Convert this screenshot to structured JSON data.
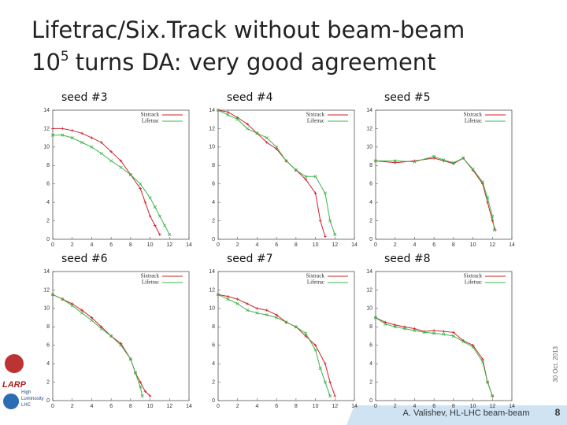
{
  "title": {
    "line1": "Lifetrac/Six.Track without beam-beam",
    "line2_base": "10",
    "line2_sup": "5",
    "line2_rest": "turns DA: very good agreement"
  },
  "footer": {
    "author": "A. Valishev, HL-LHC beam-beam",
    "page": "8",
    "date": "30 Oct. 2013"
  },
  "logos": {
    "larp": "LARP",
    "hl1": "High",
    "hl2": "Luminosity",
    "hl3": "LHC"
  },
  "chart_data": [
    {
      "type": "line",
      "title": "seed #3",
      "xlim": [
        0,
        14
      ],
      "ylim": [
        0,
        14
      ],
      "xticks": [
        0,
        2,
        4,
        6,
        8,
        10,
        12,
        14
      ],
      "yticks": [
        0,
        2,
        4,
        6,
        8,
        10,
        12,
        14
      ],
      "series": [
        {
          "name": "Sixtrack",
          "color": "#d0202a",
          "x": [
            0,
            1,
            2,
            3,
            4,
            5,
            6,
            7,
            8,
            9,
            9.5,
            10,
            10.5,
            11
          ],
          "values": [
            12,
            12,
            11.8,
            11.5,
            11,
            10.5,
            9.5,
            8.5,
            7,
            5.5,
            4,
            2.5,
            1.5,
            0.5
          ]
        },
        {
          "name": "Lifetrac",
          "color": "#3cb44b",
          "x": [
            0,
            1,
            2,
            3,
            4,
            5,
            6,
            7,
            8,
            9,
            10,
            10.5,
            11,
            11.5,
            12
          ],
          "values": [
            11.3,
            11.3,
            11,
            10.5,
            10,
            9.3,
            8.5,
            7.8,
            7,
            6,
            4.5,
            3.5,
            2.5,
            1.5,
            0.5
          ]
        }
      ]
    },
    {
      "type": "line",
      "title": "seed #4",
      "xlim": [
        0,
        14
      ],
      "ylim": [
        0,
        14
      ],
      "xticks": [
        0,
        2,
        4,
        6,
        8,
        10,
        12,
        14
      ],
      "yticks": [
        0,
        2,
        4,
        6,
        8,
        10,
        12,
        14
      ],
      "series": [
        {
          "name": "Sixtrack",
          "color": "#d0202a",
          "x": [
            0,
            1,
            2,
            3,
            4,
            5,
            6,
            7,
            8,
            9,
            10,
            10.5,
            11
          ],
          "values": [
            14,
            13.8,
            13.2,
            12.5,
            11.5,
            10.5,
            9.8,
            8.5,
            7.5,
            6.5,
            5,
            2,
            0.3
          ]
        },
        {
          "name": "Lifetrac",
          "color": "#3cb44b",
          "x": [
            0,
            1,
            2,
            3,
            4,
            5,
            6,
            7,
            8,
            9,
            10,
            11,
            11.5,
            12
          ],
          "values": [
            14,
            13.5,
            13,
            12,
            11.5,
            11,
            10,
            8.5,
            7.5,
            6.8,
            6.8,
            5,
            2,
            0.5
          ]
        }
      ]
    },
    {
      "type": "line",
      "title": "seed #5",
      "xlim": [
        0,
        14
      ],
      "ylim": [
        0,
        14
      ],
      "xticks": [
        0,
        2,
        4,
        6,
        8,
        10,
        12,
        14
      ],
      "yticks": [
        0,
        2,
        4,
        6,
        8,
        10,
        12,
        14
      ],
      "series": [
        {
          "name": "Sixtrack",
          "color": "#d0202a",
          "x": [
            0,
            2,
            4,
            6,
            7,
            8,
            9,
            10,
            11,
            11.5,
            12,
            12.3
          ],
          "values": [
            8.5,
            8.3,
            8.5,
            8.8,
            8.5,
            8.2,
            8.8,
            7.5,
            6,
            4,
            2,
            1
          ]
        },
        {
          "name": "Lifetrac",
          "color": "#3cb44b",
          "x": [
            0,
            2,
            4,
            6,
            7,
            8,
            9,
            10,
            11,
            11.5,
            12,
            12.2
          ],
          "values": [
            8.5,
            8.5,
            8.4,
            9,
            8.6,
            8.3,
            8.8,
            7.6,
            6.2,
            4.5,
            2.5,
            1
          ]
        }
      ]
    },
    {
      "type": "line",
      "title": "seed #6",
      "xlim": [
        0,
        14
      ],
      "ylim": [
        0,
        14
      ],
      "xticks": [
        0,
        2,
        4,
        6,
        8,
        10,
        12,
        14
      ],
      "yticks": [
        0,
        2,
        4,
        6,
        8,
        10,
        12,
        14
      ],
      "series": [
        {
          "name": "Sixtrack",
          "color": "#d0202a",
          "x": [
            0,
            1,
            2,
            3,
            4,
            5,
            6,
            7,
            8,
            8.5,
            9,
            9.5,
            10
          ],
          "values": [
            11.5,
            11,
            10.5,
            9.8,
            9,
            8,
            7,
            6.2,
            4.5,
            3,
            2,
            1,
            0.5
          ]
        },
        {
          "name": "Lifetrac",
          "color": "#3cb44b",
          "x": [
            0,
            1,
            2,
            3,
            4,
            5,
            6,
            7,
            8,
            8.5,
            9,
            9.2
          ],
          "values": [
            11.5,
            11,
            10.3,
            9.5,
            8.7,
            7.8,
            7,
            6,
            4.5,
            3,
            1.5,
            0.5
          ]
        }
      ]
    },
    {
      "type": "line",
      "title": "seed #7",
      "xlim": [
        0,
        14
      ],
      "ylim": [
        0,
        14
      ],
      "xticks": [
        0,
        2,
        4,
        6,
        8,
        10,
        12,
        14
      ],
      "yticks": [
        0,
        2,
        4,
        6,
        8,
        10,
        12,
        14
      ],
      "series": [
        {
          "name": "Sixtrack",
          "color": "#d0202a",
          "x": [
            0,
            1,
            2,
            3,
            4,
            5,
            6,
            7,
            8,
            9,
            10,
            11,
            11.5,
            12
          ],
          "values": [
            11.5,
            11.3,
            11,
            10.5,
            10,
            9.8,
            9.3,
            8.5,
            8,
            7,
            6,
            4,
            2,
            0.5
          ]
        },
        {
          "name": "Lifetrac",
          "color": "#3cb44b",
          "x": [
            0,
            1,
            2,
            3,
            4,
            5,
            6,
            7,
            8,
            9,
            10,
            10.5,
            11,
            11.5
          ],
          "values": [
            11.5,
            11,
            10.5,
            9.8,
            9.5,
            9.3,
            9,
            8.5,
            8,
            7.3,
            5.5,
            3.5,
            2,
            0.5
          ]
        }
      ]
    },
    {
      "type": "line",
      "title": "seed #8",
      "xlim": [
        0,
        14
      ],
      "ylim": [
        0,
        14
      ],
      "xticks": [
        0,
        2,
        4,
        6,
        8,
        10,
        12,
        14
      ],
      "yticks": [
        0,
        2,
        4,
        6,
        8,
        10,
        12,
        14
      ],
      "series": [
        {
          "name": "Sixtrack",
          "color": "#d0202a",
          "x": [
            0,
            1,
            2,
            3,
            4,
            5,
            6,
            7,
            8,
            9,
            10,
            11,
            11.5,
            12
          ],
          "values": [
            9,
            8.5,
            8.2,
            8,
            7.8,
            7.5,
            7.6,
            7.5,
            7.4,
            6.5,
            6,
            4.5,
            2,
            0.5
          ]
        },
        {
          "name": "Lifetrac",
          "color": "#3cb44b",
          "x": [
            0,
            1,
            2,
            3,
            4,
            5,
            6,
            7,
            8,
            9,
            10,
            11,
            11.5,
            12
          ],
          "values": [
            9,
            8.3,
            8,
            7.8,
            7.6,
            7.4,
            7.3,
            7.2,
            7,
            6.4,
            5.8,
            4.2,
            2,
            0.5
          ]
        }
      ]
    }
  ]
}
